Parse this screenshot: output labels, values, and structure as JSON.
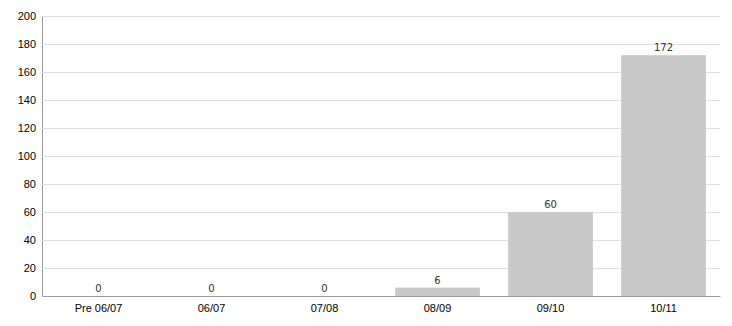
{
  "chart_data": {
    "type": "bar",
    "categories": [
      "Pre 06/07",
      "06/07",
      "07/08",
      "08/09",
      "09/10",
      "10/11"
    ],
    "values": [
      0,
      0,
      0,
      6,
      60,
      172
    ],
    "color": "#c8c8c8",
    "ylim": [
      0,
      200
    ],
    "yticks": [
      0,
      20,
      40,
      60,
      80,
      100,
      120,
      140,
      160,
      180,
      200
    ],
    "grid": true,
    "data_labels": true
  }
}
